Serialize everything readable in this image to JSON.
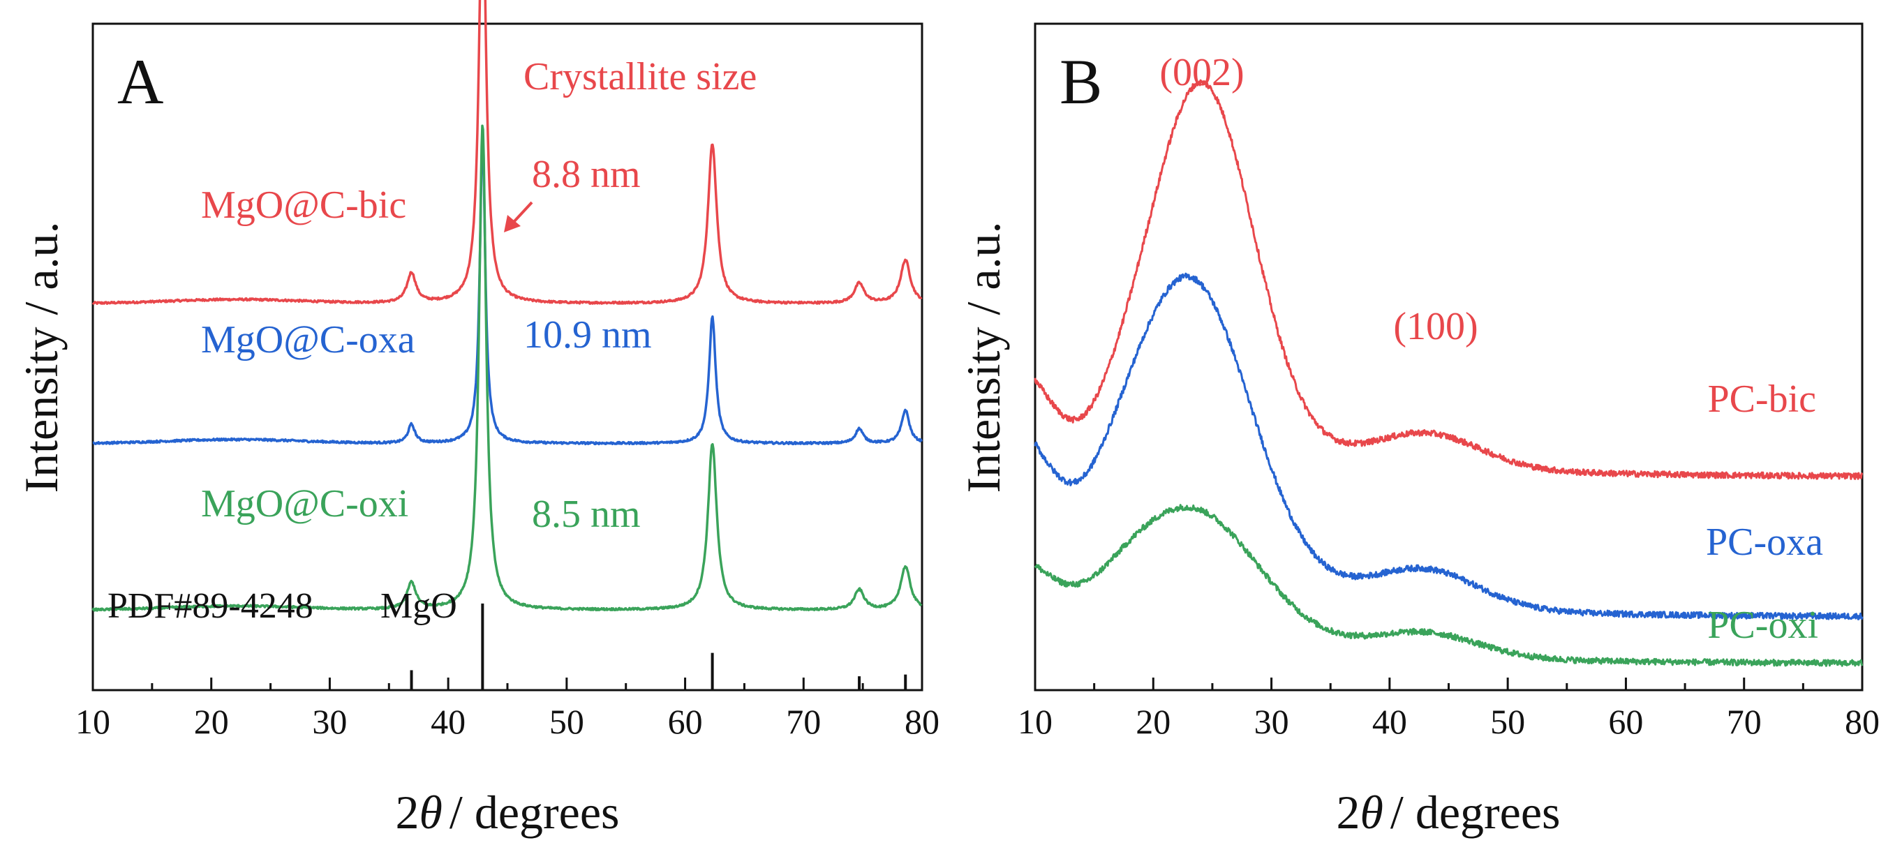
{
  "chart_data": [
    {
      "type": "line",
      "panel_label": "A",
      "xlabel_prefix": "2",
      "xlabel_symbol": "θ",
      "xlabel_suffix": "/ degrees",
      "ylabel": "Intensity / a.u.",
      "xlim": [
        10,
        80
      ],
      "xticks": [
        10,
        20,
        30,
        40,
        50,
        60,
        70,
        80
      ],
      "yticks_shown": false,
      "header_annotation": {
        "text": "Crystallite size",
        "color": "#e8474b"
      },
      "reference": {
        "label": "PDF#89-4248",
        "phase": "MgO",
        "lines": [
          {
            "x": 36.9,
            "rel": 0.23
          },
          {
            "x": 42.9,
            "rel": 1.0
          },
          {
            "x": 62.3,
            "rel": 0.43
          },
          {
            "x": 74.7,
            "rel": 0.16
          },
          {
            "x": 78.6,
            "rel": 0.18
          }
        ]
      },
      "series": [
        {
          "name": "MgO@C-bic",
          "color": "#e8474b",
          "crystallite_size": "8.8 nm",
          "offset": 0.58,
          "peaks": [
            {
              "x": 36.9,
              "h": 0.045,
              "w": 0.45
            },
            {
              "x": 42.9,
              "h": 0.64,
              "w": 0.36
            },
            {
              "x": 62.3,
              "h": 0.24,
              "w": 0.45
            },
            {
              "x": 74.7,
              "h": 0.03,
              "w": 0.5
            },
            {
              "x": 78.6,
              "h": 0.065,
              "w": 0.5
            }
          ]
        },
        {
          "name": "MgO@C-oxa",
          "color": "#2563d1",
          "crystallite_size": "10.9 nm",
          "offset": 0.37,
          "peaks": [
            {
              "x": 36.9,
              "h": 0.028,
              "w": 0.35
            },
            {
              "x": 42.9,
              "h": 0.46,
              "w": 0.28
            },
            {
              "x": 62.3,
              "h": 0.19,
              "w": 0.34
            },
            {
              "x": 74.7,
              "h": 0.022,
              "w": 0.4
            },
            {
              "x": 78.6,
              "h": 0.05,
              "w": 0.4
            }
          ]
        },
        {
          "name": "MgO@C-oxi",
          "color": "#3aa35a",
          "crystallite_size": "8.5 nm",
          "offset": 0.12,
          "peaks": [
            {
              "x": 36.9,
              "h": 0.04,
              "w": 0.45
            },
            {
              "x": 42.9,
              "h": 0.73,
              "w": 0.36
            },
            {
              "x": 62.3,
              "h": 0.25,
              "w": 0.45
            },
            {
              "x": 74.7,
              "h": 0.03,
              "w": 0.5
            },
            {
              "x": 78.6,
              "h": 0.065,
              "w": 0.5
            }
          ]
        }
      ]
    },
    {
      "type": "line",
      "panel_label": "B",
      "xlabel_prefix": "2",
      "xlabel_symbol": "θ",
      "xlabel_suffix": "/ degrees",
      "ylabel": "Intensity / a.u.",
      "xlim": [
        10,
        80
      ],
      "xticks": [
        10,
        20,
        30,
        40,
        50,
        60,
        70,
        80
      ],
      "yticks_shown": false,
      "peak_annotations": [
        {
          "text": "(002)",
          "x": 24,
          "color": "#e8474b"
        },
        {
          "text": "(100)",
          "x": 43,
          "color": "#e8474b"
        }
      ],
      "series": [
        {
          "name": "PC-bic",
          "color": "#e8474b",
          "base_start": 0.49,
          "base_end": 0.32,
          "decay": 14,
          "dip": {
            "x": 13.5,
            "depth": 0.07,
            "w": 3.5
          },
          "peaks": [
            {
              "x": 24.2,
              "h": 0.53,
              "w": 4.3
            },
            {
              "x": 43.2,
              "h": 0.05,
              "w": 4.5
            }
          ]
        },
        {
          "name": "PC-oxa",
          "color": "#2563d1",
          "base_start": 0.38,
          "base_end": 0.11,
          "decay": 12,
          "dip": {
            "x": 13.5,
            "depth": 0.06,
            "w": 3.5
          },
          "peaks": [
            {
              "x": 23.3,
              "h": 0.42,
              "w": 5.0
            },
            {
              "x": 43.0,
              "h": 0.055,
              "w": 4.5
            }
          ]
        },
        {
          "name": "PC-oxi",
          "color": "#3aa35a",
          "base_start": 0.19,
          "base_end": 0.04,
          "decay": 13,
          "dip": {
            "x": 13.5,
            "depth": 0.03,
            "w": 3.5
          },
          "peaks": [
            {
              "x": 23.5,
              "h": 0.18,
              "w": 5.5
            },
            {
              "x": 43.0,
              "h": 0.035,
              "w": 4.5
            }
          ]
        }
      ]
    }
  ]
}
